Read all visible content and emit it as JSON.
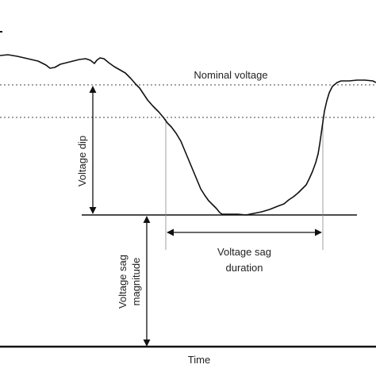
{
  "labels": {
    "nominal_voltage": "Nominal voltage",
    "voltage_dip": "Voltage dip",
    "sag_duration_line1": "Voltage sag",
    "sag_duration_line2": "duration",
    "sag_magnitude_line1": "Voltage sag",
    "sag_magnitude_line2": "magnitude",
    "time_axis": "Time"
  },
  "colors": {
    "stroke": "#111111",
    "guide": "#444444",
    "text": "#222222"
  }
}
